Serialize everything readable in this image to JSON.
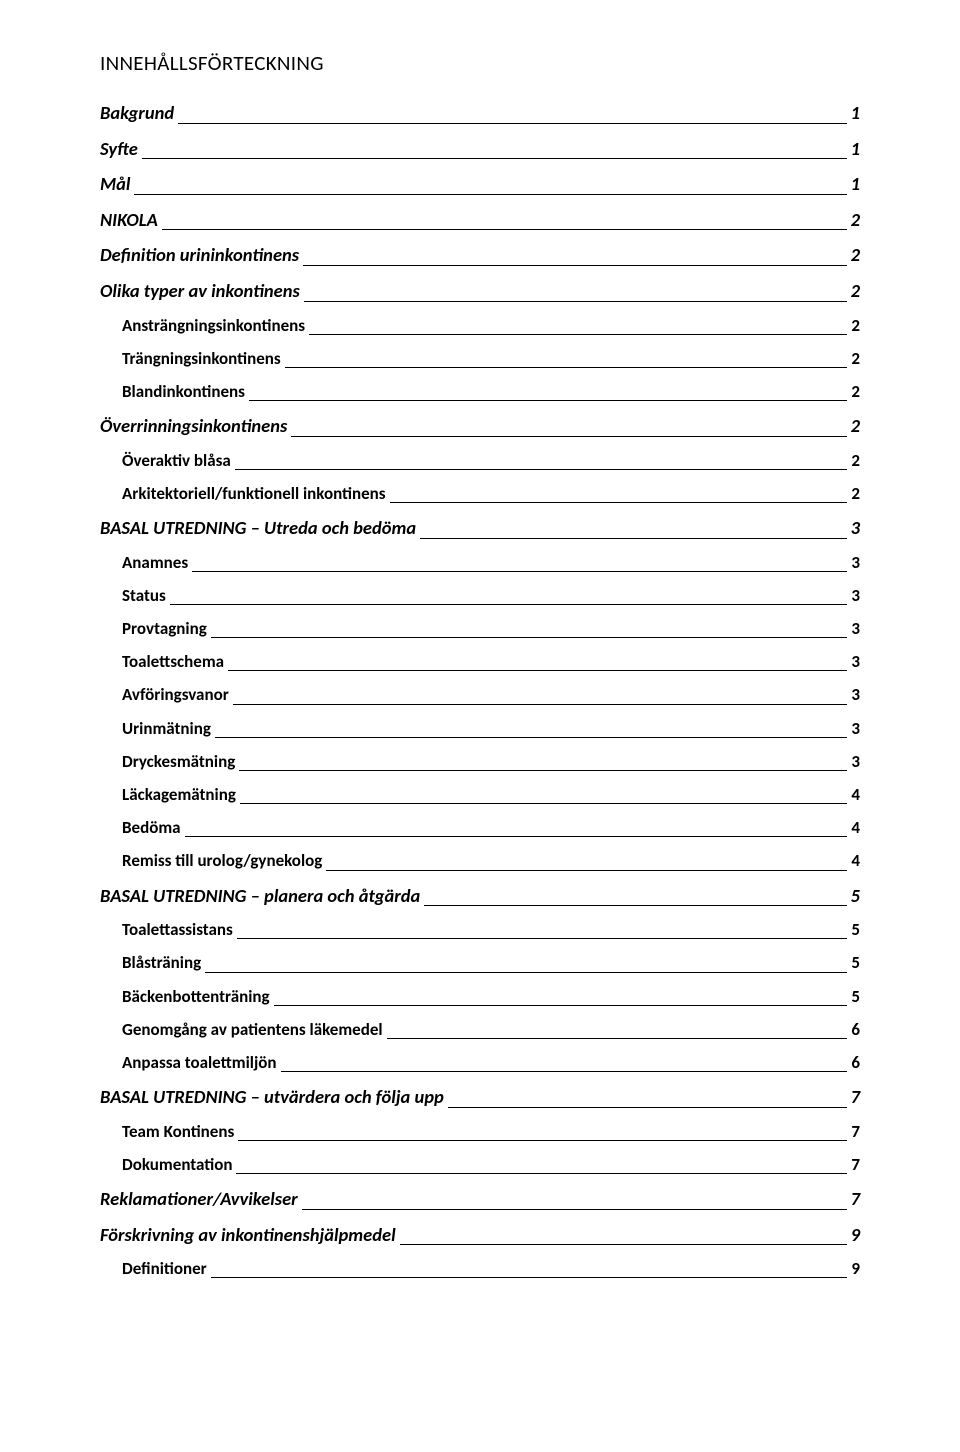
{
  "title": "INNEHÅLLSFÖRTECKNING",
  "toc": [
    {
      "level": 1,
      "label": "Bakgrund",
      "page": "1"
    },
    {
      "level": 1,
      "label": "Syfte",
      "page": "1"
    },
    {
      "level": 1,
      "label": "Mål",
      "page": "1"
    },
    {
      "level": 1,
      "label": "NIKOLA",
      "page": "2"
    },
    {
      "level": 1,
      "label": "Definition urininkontinens",
      "page": "2"
    },
    {
      "level": 1,
      "label": "Olika typer av inkontinens",
      "page": "2"
    },
    {
      "level": 2,
      "label": "Ansträngningsinkontinens",
      "page": "2"
    },
    {
      "level": 2,
      "label": "Trängningsinkontinens",
      "page": "2"
    },
    {
      "level": 2,
      "label": "Blandinkontinens",
      "page": "2"
    },
    {
      "level": 1,
      "label": "Överrinningsinkontinens",
      "page": "2"
    },
    {
      "level": 2,
      "label": "Överaktiv blåsa",
      "page": "2"
    },
    {
      "level": 2,
      "label": "Arkitektoriell/funktionell inkontinens",
      "page": "2"
    },
    {
      "level": 1,
      "label": "BASAL UTREDNING – Utreda och bedöma",
      "page": "3"
    },
    {
      "level": 2,
      "label": "Anamnes",
      "page": "3"
    },
    {
      "level": 2,
      "label": "Status",
      "page": "3"
    },
    {
      "level": 2,
      "label": "Provtagning",
      "page": "3"
    },
    {
      "level": 2,
      "label": "Toalettschema",
      "page": "3"
    },
    {
      "level": 2,
      "label": "Avföringsvanor",
      "page": "3"
    },
    {
      "level": 2,
      "label": "Urinmätning",
      "page": "3"
    },
    {
      "level": 2,
      "label": "Dryckesmätning",
      "page": "3"
    },
    {
      "level": 2,
      "label": "Läckagemätning",
      "page": "4"
    },
    {
      "level": 2,
      "label": "Bedöma",
      "page": "4"
    },
    {
      "level": 2,
      "label": "Remiss till urolog/gynekolog",
      "page": "4"
    },
    {
      "level": 1,
      "label": "BASAL UTREDNING – planera och åtgärda",
      "page": "5"
    },
    {
      "level": 2,
      "label": "Toalettassistans",
      "page": "5"
    },
    {
      "level": 2,
      "label": "Blåsträning",
      "page": "5"
    },
    {
      "level": 2,
      "label": "Bäckenbottenträning",
      "page": "5"
    },
    {
      "level": 2,
      "label": "Genomgång av patientens läkemedel",
      "page": "6"
    },
    {
      "level": 2,
      "label": "Anpassa toalettmiljön",
      "page": "6"
    },
    {
      "level": 1,
      "label": "BASAL UTREDNING – utvärdera och följa upp",
      "page": "7"
    },
    {
      "level": 2,
      "label": "Team Kontinens",
      "page": "7"
    },
    {
      "level": 2,
      "label": "Dokumentation",
      "page": "7"
    },
    {
      "level": 1,
      "label": "Reklamationer/Avvikelser",
      "page": "7"
    },
    {
      "level": 1,
      "label": "Förskrivning av inkontinenshjälpmedel",
      "page": "9"
    },
    {
      "level": 2,
      "label": "Definitioner",
      "page": "9"
    }
  ]
}
